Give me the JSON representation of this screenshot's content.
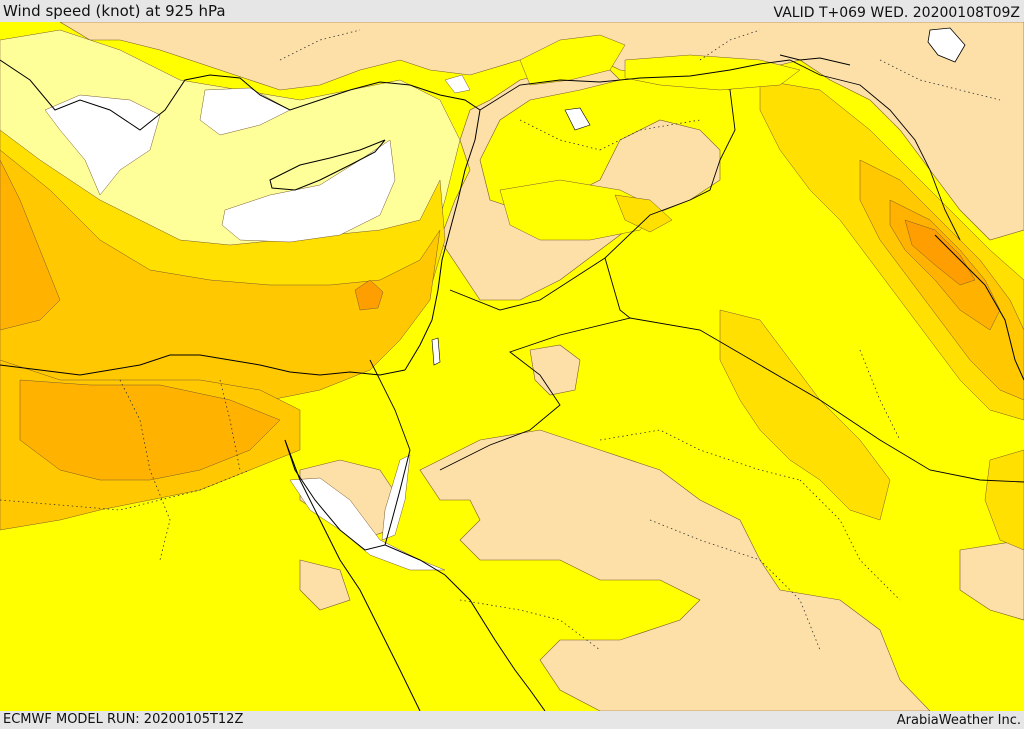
{
  "header": {
    "title": "Wind speed (knot) at 925 hPa",
    "valid": "VALID T+069 WED. 20200108T09Z"
  },
  "footer": {
    "model_run": "ECMWF MODEL RUN: 20200105T12Z",
    "credit": "ArabiaWeather Inc."
  },
  "palette": {
    "white": "#ffffff",
    "light_yellow": "#ffff9a",
    "yellow": "#ffff00",
    "gold": "#ffe000",
    "amber": "#ffc800",
    "orange": "#ffb300",
    "deep_orange": "#ff9e00",
    "tan": "#fde0a8",
    "coast": "#000000"
  }
}
